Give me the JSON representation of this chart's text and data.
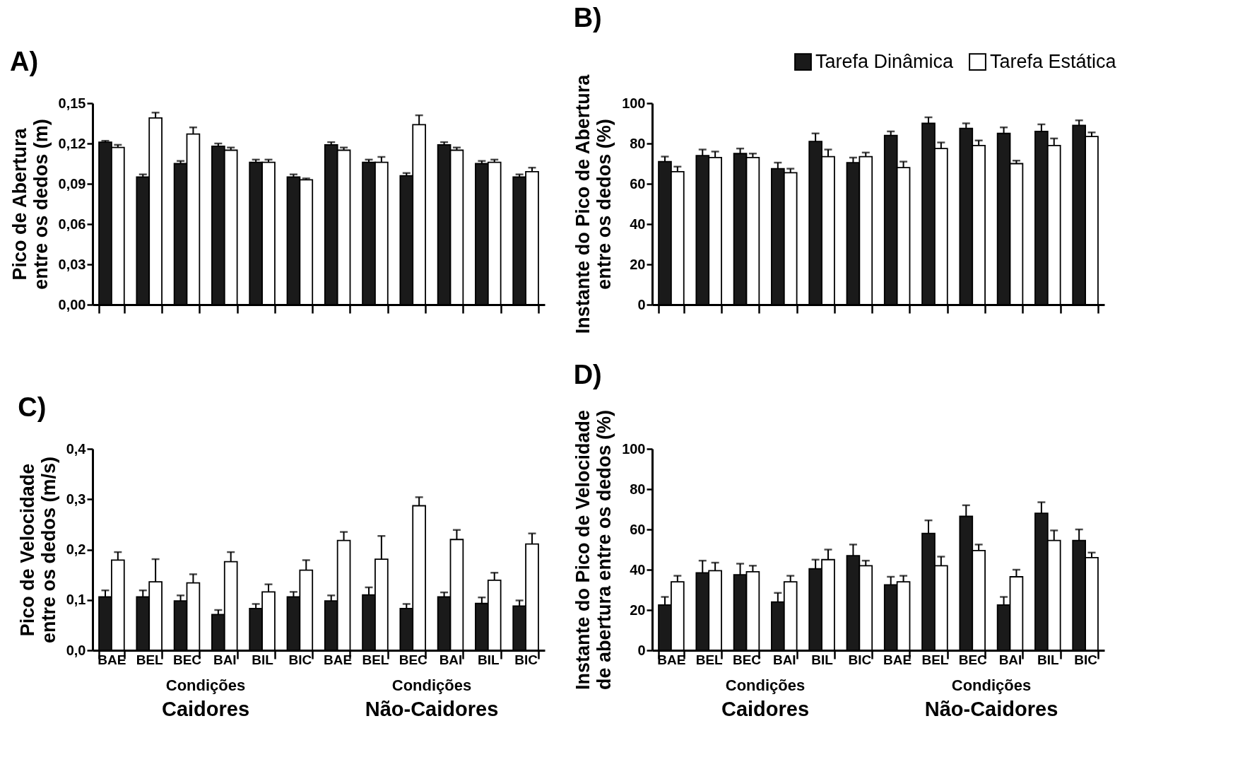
{
  "chart_data": [
    {
      "type": "bar",
      "title": "A)",
      "ylabel": "Pico de Abertura\nentre os dedos (m)",
      "categories": [
        null,
        null,
        null,
        null,
        null,
        null,
        null,
        null,
        null,
        null,
        null,
        null
      ],
      "tick_labels": "y",
      "ylim": [
        0,
        0.15
      ],
      "yticks": [
        {
          "value": 0,
          "label": "0,00"
        },
        {
          "value": 0.03,
          "label": "0,03"
        },
        {
          "value": 0.06,
          "label": "0,06"
        },
        {
          "value": 0.09,
          "label": "0,09"
        },
        {
          "value": 0.12,
          "label": "0,12"
        },
        {
          "value": 0.15,
          "label": "0,15"
        }
      ],
      "series": [
        {
          "color": "#1a1a1a",
          "values": [
            0.121,
            0.095,
            0.105,
            0.118,
            0.106,
            0.095,
            0.119,
            0.106,
            0.096,
            0.119,
            0.105,
            0.095
          ],
          "errors": [
            [
              0.121,
              0.122
            ],
            [
              0.095,
              0.097
            ],
            [
              0.105,
              0.107
            ],
            [
              0.118,
              0.12
            ],
            [
              0.106,
              0.108
            ],
            [
              0.095,
              0.097
            ],
            [
              0.119,
              0.121
            ],
            [
              0.106,
              0.108
            ],
            [
              0.096,
              0.098
            ],
            [
              0.119,
              0.121
            ],
            [
              0.105,
              0.107
            ],
            [
              0.095,
              0.097
            ]
          ]
        },
        {
          "color": "#ffffff",
          "values": [
            0.117,
            0.139,
            0.127,
            0.115,
            0.106,
            0.093,
            0.115,
            0.106,
            0.134,
            0.115,
            0.106,
            0.099
          ],
          "errors": [
            [
              0.117,
              0.119
            ],
            [
              0.139,
              0.143
            ],
            [
              0.127,
              0.132
            ],
            [
              0.115,
              0.117
            ],
            [
              0.106,
              0.108
            ],
            [
              0.093,
              0.094
            ],
            [
              0.115,
              0.117
            ],
            [
              0.106,
              0.11
            ],
            [
              0.134,
              0.141
            ],
            [
              0.115,
              0.117
            ],
            [
              0.106,
              0.108
            ],
            [
              0.099,
              0.102
            ]
          ]
        }
      ]
    },
    {
      "type": "bar",
      "title": "B)",
      "ylabel": "Instante do Pico de Abertura\nentre os dedos (%)",
      "categories": [
        null,
        null,
        null,
        null,
        null,
        null,
        null,
        null,
        null,
        null,
        null,
        null
      ],
      "tick_labels": "y",
      "legend": "top right",
      "ylim": [
        0,
        100
      ],
      "yticks": [
        0,
        20,
        40,
        60,
        80,
        100
      ],
      "series": [
        {
          "name": "Tarefa Dinâmica",
          "color": "#1a1a1a",
          "values": [
            71,
            74,
            75,
            67.5,
            81,
            70.5,
            84,
            90,
            87.5,
            85,
            86,
            89
          ],
          "errors": [
            [
              71,
              73.5
            ],
            [
              74,
              77
            ],
            [
              75,
              77.5
            ],
            [
              67.5,
              70.5
            ],
            [
              81,
              85
            ],
            [
              70.5,
              73
            ],
            [
              84,
              86
            ],
            [
              90,
              93
            ],
            [
              87.5,
              90
            ],
            [
              85,
              88
            ],
            [
              86,
              89.5
            ],
            [
              89,
              91.5
            ]
          ]
        },
        {
          "name": "Tarefa Estática",
          "color": "#ffffff",
          "values": [
            66,
            73,
            73,
            65.5,
            73.5,
            73.5,
            68,
            77.5,
            79,
            70,
            79,
            83.5
          ],
          "errors": [
            [
              66,
              68.5
            ],
            [
              73,
              76
            ],
            [
              73,
              75
            ],
            [
              65.5,
              67.5
            ],
            [
              73.5,
              77
            ],
            [
              73.5,
              75.5
            ],
            [
              68,
              71
            ],
            [
              77.5,
              80.5
            ],
            [
              79,
              81.5
            ],
            [
              70,
              71.5
            ],
            [
              79,
              82.5
            ],
            [
              83.5,
              85.5
            ]
          ]
        }
      ]
    },
    {
      "type": "bar",
      "title": "C)",
      "ylabel": "Pico de Velocidade\nentre os dedos (m/s)",
      "categories": [
        "BAE",
        "BEL",
        "BEC",
        "BAI",
        "BIL",
        "BIC",
        "BAE",
        "BEL",
        "BEC",
        "BAI",
        "BIL",
        "BIC"
      ],
      "annotations": [
        "Condições",
        "Caidores",
        "Condições",
        "Não-Caidores"
      ],
      "ylim": [
        0,
        0.4
      ],
      "yticks": [
        {
          "value": 0,
          "label": "0,0"
        },
        {
          "value": 0.1,
          "label": "0,1"
        },
        {
          "value": 0.2,
          "label": "0,2"
        },
        {
          "value": 0.3,
          "label": "0,3"
        },
        {
          "value": 0.4,
          "label": "0,4"
        }
      ],
      "series": [
        {
          "color": "#1a1a1a",
          "values": [
            0.106,
            0.106,
            0.098,
            0.071,
            0.083,
            0.106,
            0.098,
            0.11,
            0.083,
            0.106,
            0.093,
            0.088
          ],
          "errors": [
            [
              0.106,
              0.119
            ],
            [
              0.106,
              0.119
            ],
            [
              0.098,
              0.109
            ],
            [
              0.071,
              0.08
            ],
            [
              0.083,
              0.092
            ],
            [
              0.106,
              0.116
            ],
            [
              0.098,
              0.109
            ],
            [
              0.11,
              0.125
            ],
            [
              0.083,
              0.092
            ],
            [
              0.106,
              0.115
            ],
            [
              0.093,
              0.105
            ],
            [
              0.088,
              0.099
            ]
          ]
        },
        {
          "color": "#ffffff",
          "values": [
            0.179,
            0.136,
            0.134,
            0.176,
            0.116,
            0.159,
            0.218,
            0.181,
            0.287,
            0.22,
            0.139,
            0.211
          ],
          "errors": [
            [
              0.179,
              0.195
            ],
            [
              0.136,
              0.181
            ],
            [
              0.134,
              0.151
            ],
            [
              0.176,
              0.195
            ],
            [
              0.116,
              0.131
            ],
            [
              0.159,
              0.179
            ],
            [
              0.218,
              0.235
            ],
            [
              0.181,
              0.227
            ],
            [
              0.287,
              0.304
            ],
            [
              0.22,
              0.239
            ],
            [
              0.139,
              0.154
            ],
            [
              0.211,
              0.232
            ]
          ]
        }
      ]
    },
    {
      "type": "bar",
      "title": "D)",
      "ylabel": "Instante do Pico de Velocidade\nde abertura entre os dedos (%)",
      "categories": [
        "BAE",
        "BEL",
        "BEC",
        "BAI",
        "BIL",
        "BIC",
        "BAE",
        "BEL",
        "BEC",
        "BAI",
        "BIL",
        "BIC"
      ],
      "annotations": [
        "Condições",
        "Caidores",
        "Condições",
        "Não-Caidores"
      ],
      "ylim": [
        0,
        100
      ],
      "yticks": [
        0,
        20,
        40,
        60,
        80,
        100
      ],
      "series": [
        {
          "color": "#1a1a1a",
          "values": [
            22.5,
            38.5,
            37.5,
            24,
            40.5,
            47,
            32.5,
            58,
            66.5,
            22.5,
            68,
            54.5
          ],
          "errors": [
            [
              22.5,
              26.5
            ],
            [
              38.5,
              44.5
            ],
            [
              37.5,
              43
            ],
            [
              24,
              28.5
            ],
            [
              40.5,
              45
            ],
            [
              47,
              52.5
            ],
            [
              32.5,
              36.5
            ],
            [
              58,
              64.5
            ],
            [
              66.5,
              72
            ],
            [
              22.5,
              26.5
            ],
            [
              68,
              73.5
            ],
            [
              54.5,
              60
            ]
          ]
        },
        {
          "color": "#ffffff",
          "values": [
            34,
            39.5,
            39,
            34,
            45,
            42,
            34,
            42,
            49.5,
            36.5,
            54.5,
            46
          ],
          "errors": [
            [
              34,
              37
            ],
            [
              39.5,
              43.5
            ],
            [
              39,
              42
            ],
            [
              34,
              37
            ],
            [
              45,
              50
            ],
            [
              42,
              44.5
            ],
            [
              34,
              37
            ],
            [
              42,
              46.5
            ],
            [
              49.5,
              52.5
            ],
            [
              36.5,
              40
            ],
            [
              54.5,
              59.5
            ],
            [
              46,
              48.5
            ]
          ]
        }
      ]
    }
  ]
}
